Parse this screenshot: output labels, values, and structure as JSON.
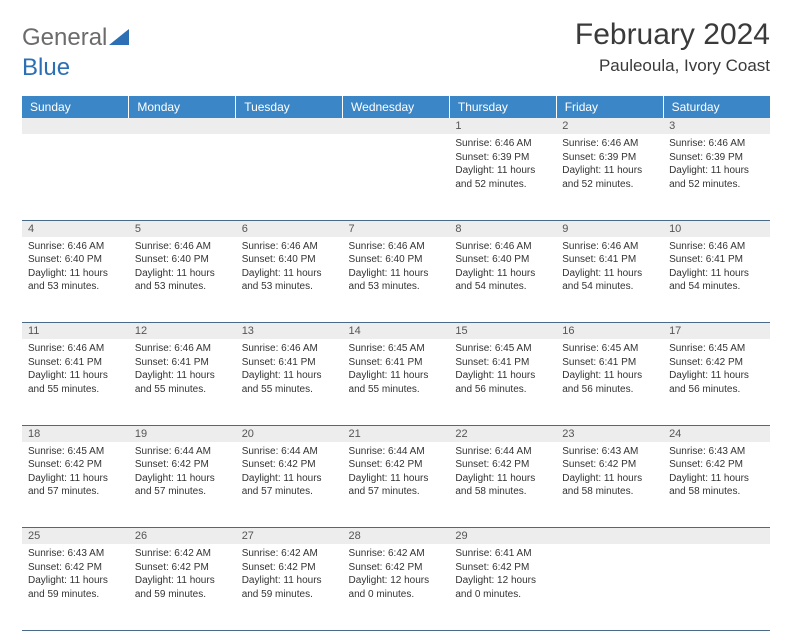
{
  "logo": {
    "part1": "General",
    "part2": "Blue"
  },
  "title": "February 2024",
  "location": "Pauleoula, Ivory Coast",
  "colors": {
    "header_bg": "#3b86c6",
    "header_text": "#ffffff",
    "daynum_bg": "#ededed",
    "border": "#4a6a8a",
    "logo_gray": "#6b6b6b",
    "logo_blue": "#2d6fb5"
  },
  "day_headers": [
    "Sunday",
    "Monday",
    "Tuesday",
    "Wednesday",
    "Thursday",
    "Friday",
    "Saturday"
  ],
  "weeks": [
    [
      null,
      null,
      null,
      null,
      {
        "n": "1",
        "sr": "Sunrise: 6:46 AM",
        "ss": "Sunset: 6:39 PM",
        "d1": "Daylight: 11 hours",
        "d2": "and 52 minutes."
      },
      {
        "n": "2",
        "sr": "Sunrise: 6:46 AM",
        "ss": "Sunset: 6:39 PM",
        "d1": "Daylight: 11 hours",
        "d2": "and 52 minutes."
      },
      {
        "n": "3",
        "sr": "Sunrise: 6:46 AM",
        "ss": "Sunset: 6:39 PM",
        "d1": "Daylight: 11 hours",
        "d2": "and 52 minutes."
      }
    ],
    [
      {
        "n": "4",
        "sr": "Sunrise: 6:46 AM",
        "ss": "Sunset: 6:40 PM",
        "d1": "Daylight: 11 hours",
        "d2": "and 53 minutes."
      },
      {
        "n": "5",
        "sr": "Sunrise: 6:46 AM",
        "ss": "Sunset: 6:40 PM",
        "d1": "Daylight: 11 hours",
        "d2": "and 53 minutes."
      },
      {
        "n": "6",
        "sr": "Sunrise: 6:46 AM",
        "ss": "Sunset: 6:40 PM",
        "d1": "Daylight: 11 hours",
        "d2": "and 53 minutes."
      },
      {
        "n": "7",
        "sr": "Sunrise: 6:46 AM",
        "ss": "Sunset: 6:40 PM",
        "d1": "Daylight: 11 hours",
        "d2": "and 53 minutes."
      },
      {
        "n": "8",
        "sr": "Sunrise: 6:46 AM",
        "ss": "Sunset: 6:40 PM",
        "d1": "Daylight: 11 hours",
        "d2": "and 54 minutes."
      },
      {
        "n": "9",
        "sr": "Sunrise: 6:46 AM",
        "ss": "Sunset: 6:41 PM",
        "d1": "Daylight: 11 hours",
        "d2": "and 54 minutes."
      },
      {
        "n": "10",
        "sr": "Sunrise: 6:46 AM",
        "ss": "Sunset: 6:41 PM",
        "d1": "Daylight: 11 hours",
        "d2": "and 54 minutes."
      }
    ],
    [
      {
        "n": "11",
        "sr": "Sunrise: 6:46 AM",
        "ss": "Sunset: 6:41 PM",
        "d1": "Daylight: 11 hours",
        "d2": "and 55 minutes."
      },
      {
        "n": "12",
        "sr": "Sunrise: 6:46 AM",
        "ss": "Sunset: 6:41 PM",
        "d1": "Daylight: 11 hours",
        "d2": "and 55 minutes."
      },
      {
        "n": "13",
        "sr": "Sunrise: 6:46 AM",
        "ss": "Sunset: 6:41 PM",
        "d1": "Daylight: 11 hours",
        "d2": "and 55 minutes."
      },
      {
        "n": "14",
        "sr": "Sunrise: 6:45 AM",
        "ss": "Sunset: 6:41 PM",
        "d1": "Daylight: 11 hours",
        "d2": "and 55 minutes."
      },
      {
        "n": "15",
        "sr": "Sunrise: 6:45 AM",
        "ss": "Sunset: 6:41 PM",
        "d1": "Daylight: 11 hours",
        "d2": "and 56 minutes."
      },
      {
        "n": "16",
        "sr": "Sunrise: 6:45 AM",
        "ss": "Sunset: 6:41 PM",
        "d1": "Daylight: 11 hours",
        "d2": "and 56 minutes."
      },
      {
        "n": "17",
        "sr": "Sunrise: 6:45 AM",
        "ss": "Sunset: 6:42 PM",
        "d1": "Daylight: 11 hours",
        "d2": "and 56 minutes."
      }
    ],
    [
      {
        "n": "18",
        "sr": "Sunrise: 6:45 AM",
        "ss": "Sunset: 6:42 PM",
        "d1": "Daylight: 11 hours",
        "d2": "and 57 minutes."
      },
      {
        "n": "19",
        "sr": "Sunrise: 6:44 AM",
        "ss": "Sunset: 6:42 PM",
        "d1": "Daylight: 11 hours",
        "d2": "and 57 minutes."
      },
      {
        "n": "20",
        "sr": "Sunrise: 6:44 AM",
        "ss": "Sunset: 6:42 PM",
        "d1": "Daylight: 11 hours",
        "d2": "and 57 minutes."
      },
      {
        "n": "21",
        "sr": "Sunrise: 6:44 AM",
        "ss": "Sunset: 6:42 PM",
        "d1": "Daylight: 11 hours",
        "d2": "and 57 minutes."
      },
      {
        "n": "22",
        "sr": "Sunrise: 6:44 AM",
        "ss": "Sunset: 6:42 PM",
        "d1": "Daylight: 11 hours",
        "d2": "and 58 minutes."
      },
      {
        "n": "23",
        "sr": "Sunrise: 6:43 AM",
        "ss": "Sunset: 6:42 PM",
        "d1": "Daylight: 11 hours",
        "d2": "and 58 minutes."
      },
      {
        "n": "24",
        "sr": "Sunrise: 6:43 AM",
        "ss": "Sunset: 6:42 PM",
        "d1": "Daylight: 11 hours",
        "d2": "and 58 minutes."
      }
    ],
    [
      {
        "n": "25",
        "sr": "Sunrise: 6:43 AM",
        "ss": "Sunset: 6:42 PM",
        "d1": "Daylight: 11 hours",
        "d2": "and 59 minutes."
      },
      {
        "n": "26",
        "sr": "Sunrise: 6:42 AM",
        "ss": "Sunset: 6:42 PM",
        "d1": "Daylight: 11 hours",
        "d2": "and 59 minutes."
      },
      {
        "n": "27",
        "sr": "Sunrise: 6:42 AM",
        "ss": "Sunset: 6:42 PM",
        "d1": "Daylight: 11 hours",
        "d2": "and 59 minutes."
      },
      {
        "n": "28",
        "sr": "Sunrise: 6:42 AM",
        "ss": "Sunset: 6:42 PM",
        "d1": "Daylight: 12 hours",
        "d2": "and 0 minutes."
      },
      {
        "n": "29",
        "sr": "Sunrise: 6:41 AM",
        "ss": "Sunset: 6:42 PM",
        "d1": "Daylight: 12 hours",
        "d2": "and 0 minutes."
      },
      null,
      null
    ]
  ]
}
